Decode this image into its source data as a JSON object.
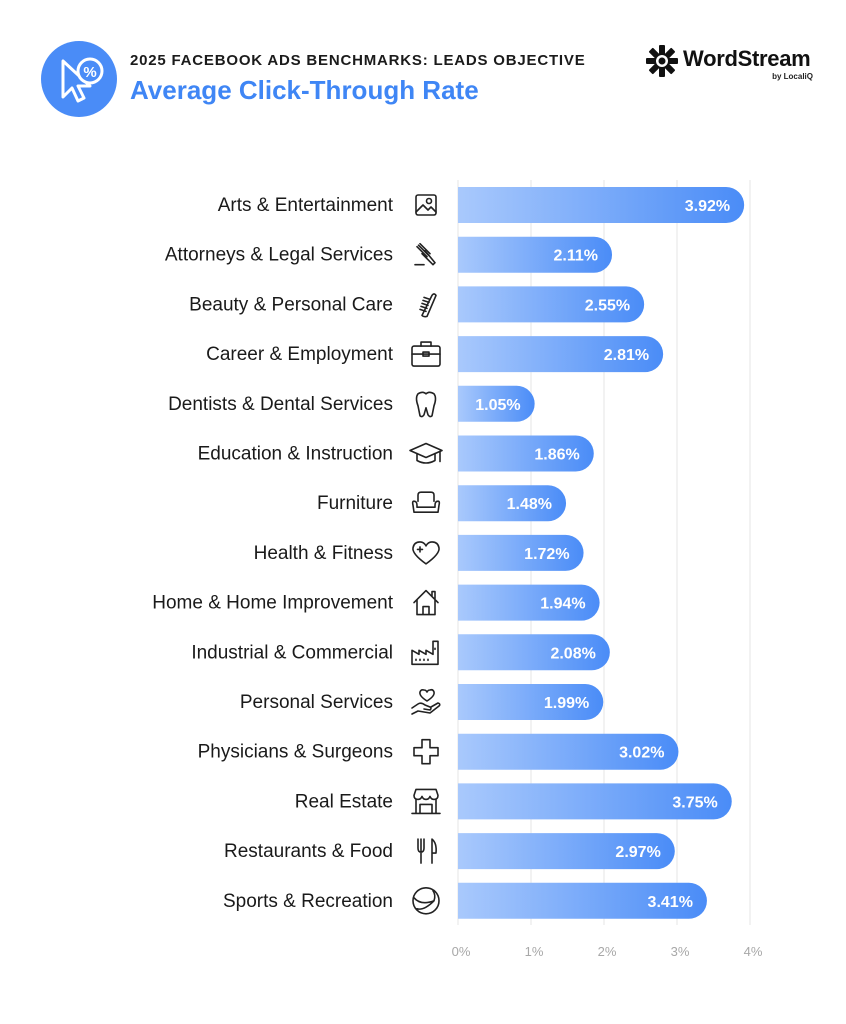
{
  "header": {
    "subtitle": "2025 FACEBOOK ADS BENCHMARKS: LEADS OBJECTIVE",
    "title": "Average Click-Through Rate",
    "badge_icon": "cursor-percent-icon"
  },
  "brand": {
    "name": "WordStream",
    "sub": "by LocaliQ",
    "logo_icon": "wordstream-logo-icon"
  },
  "colors": {
    "accent": "#3f86f5",
    "bar_start": "#a9c9fc",
    "bar_end": "#4a8cf7",
    "grid": "#e6e6e6"
  },
  "chart_data": {
    "type": "bar",
    "orientation": "horizontal",
    "title": "Average Click-Through Rate",
    "categories": [
      "Arts & Entertainment",
      "Attorneys & Legal Services",
      "Beauty & Personal Care",
      "Career & Employment",
      "Dentists & Dental Services",
      "Education & Instruction",
      "Furniture",
      "Health & Fitness",
      "Home & Home Improvement",
      "Industrial & Commercial",
      "Personal Services",
      "Physicians & Surgeons",
      "Real Estate",
      "Restaurants & Food",
      "Sports & Recreation"
    ],
    "values": [
      3.92,
      2.11,
      2.55,
      2.81,
      1.05,
      1.86,
      1.48,
      1.72,
      1.94,
      2.08,
      1.99,
      3.02,
      3.75,
      2.97,
      3.41
    ],
    "value_labels": [
      "3.92%",
      "2.11%",
      "2.55%",
      "2.81%",
      "1.05%",
      "1.86%",
      "1.48%",
      "1.72%",
      "1.94%",
      "2.08%",
      "1.99%",
      "3.02%",
      "3.75%",
      "2.97%",
      "3.41%"
    ],
    "icons": [
      "picture-icon",
      "gavel-icon",
      "comb-icon",
      "briefcase-icon",
      "tooth-icon",
      "graduation-cap-icon",
      "armchair-icon",
      "heart-plus-icon",
      "house-icon",
      "factory-icon",
      "hand-heart-icon",
      "medical-cross-icon",
      "storefront-icon",
      "fork-knife-icon",
      "ball-icon"
    ],
    "x_ticks": [
      0,
      1,
      2,
      3,
      4
    ],
    "x_tick_labels": [
      "0%",
      "1%",
      "2%",
      "3%",
      "4%"
    ],
    "xlim": [
      0,
      4
    ],
    "grid": true,
    "xlabel": "",
    "ylabel": ""
  }
}
